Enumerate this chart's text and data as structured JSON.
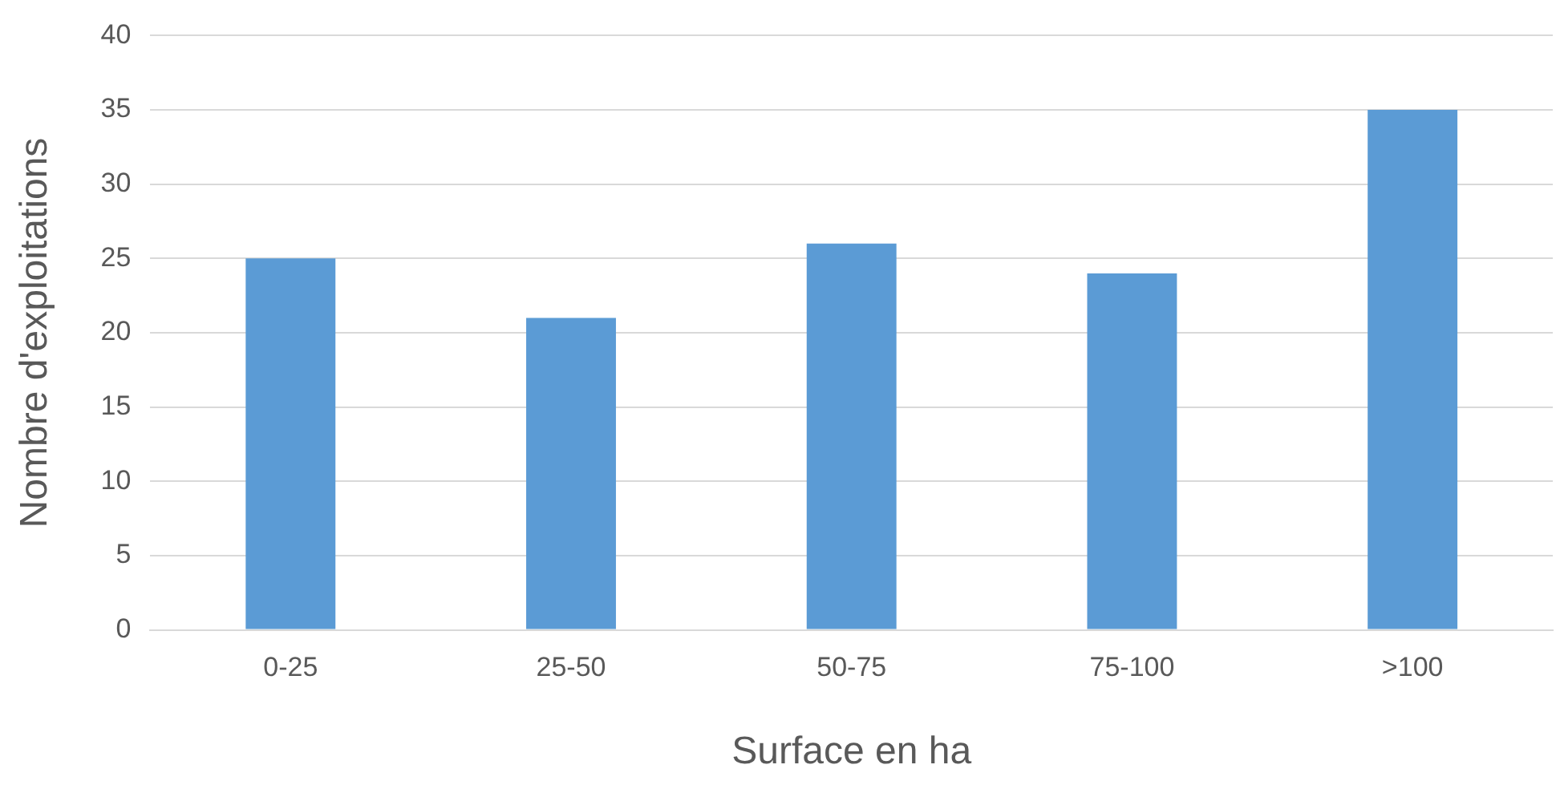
{
  "chart_data": {
    "type": "bar",
    "xlabel": "Surface en ha",
    "ylabel": "Nombre d'exploitations",
    "categories": [
      "0-25",
      "25-50",
      "50-75",
      "75-100",
      ">100"
    ],
    "values": [
      25,
      21,
      26,
      24,
      35
    ],
    "color": "#5b9bd5",
    "ylim": [
      0,
      40
    ],
    "yticks": [
      0,
      5,
      10,
      15,
      20,
      25,
      30,
      35,
      40
    ],
    "grid": "y",
    "legend": false
  }
}
